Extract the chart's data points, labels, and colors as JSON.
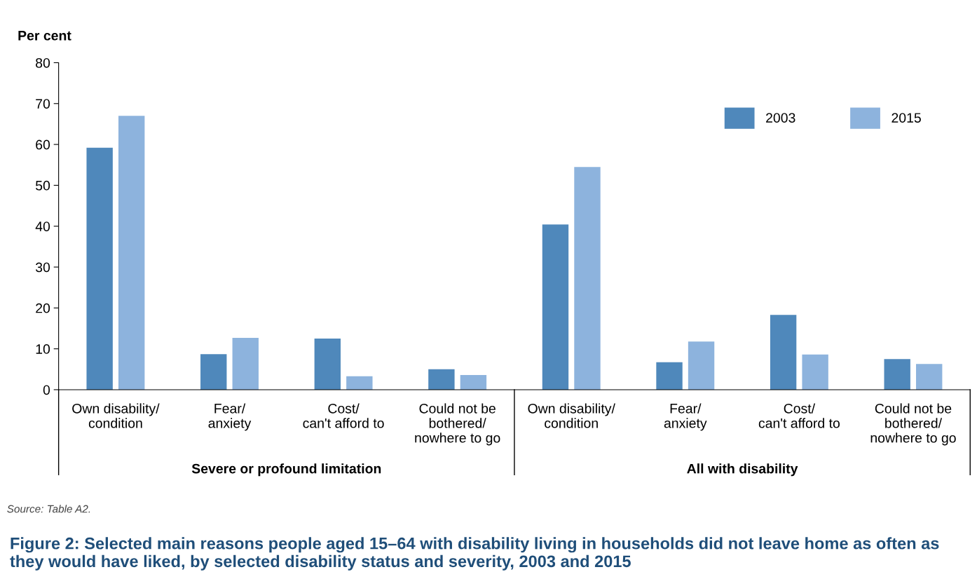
{
  "chart_data": {
    "type": "bar",
    "title": "Figure 2: Selected main reasons people aged 15–64 with disability living in households did not leave home as often as they would have liked, by selected disability status and severity, 2003 and 2015",
    "ylabel": "Per cent",
    "categories": [
      "Own disability/\ncondition",
      "Fear/\nanxiety",
      "Cost/\ncan't afford to",
      "Could not be\nbothered/\nnowhere to go",
      "Own disability/\ncondition",
      "Fear/\nanxiety",
      "Cost/\ncan't afford to",
      "Could not be\nbothered/\nnowhere to go"
    ],
    "series": [
      {
        "name": "2003",
        "color": "#4f88bb",
        "values": [
          59.2,
          8.7,
          12.5,
          5.0,
          40.4,
          6.7,
          18.3,
          7.5
        ]
      },
      {
        "name": "2015",
        "color": "#8db3dd",
        "values": [
          67.0,
          12.7,
          3.3,
          3.6,
          54.5,
          11.8,
          8.6,
          6.3
        ]
      }
    ],
    "annotations": [
      "Severe or profound limitation",
      "All with disability",
      "Source: Table A2."
    ],
    "ylim": [
      0,
      80
    ],
    "yticks": [
      0,
      10,
      20,
      30,
      40,
      50,
      60,
      70,
      80
    ],
    "grid": false,
    "legend": "top right"
  }
}
